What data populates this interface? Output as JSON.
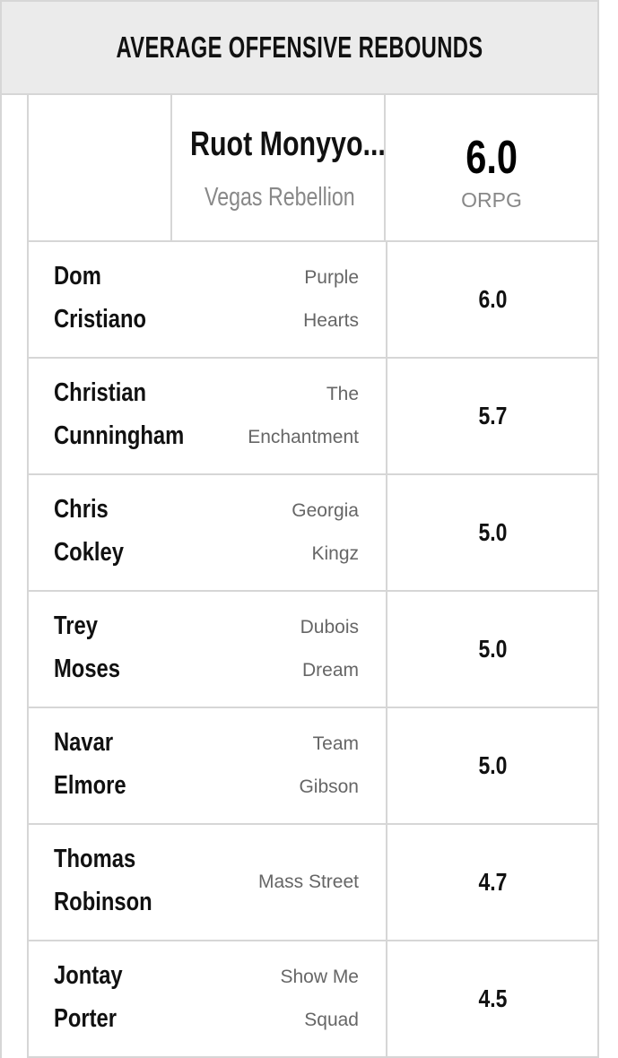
{
  "header": {
    "title": "AVERAGE OFFENSIVE REBOUNDS"
  },
  "leader": {
    "name": "Ruot Monyyo...",
    "team": "Vegas Rebellion",
    "value": "6.0",
    "unit": "ORPG"
  },
  "rows": [
    {
      "name": [
        "Dom",
        "Cristiano"
      ],
      "team": [
        "Purple",
        "Hearts"
      ],
      "value": "6.0"
    },
    {
      "name": [
        "Christian",
        "Cunningham"
      ],
      "team": [
        "The",
        "Enchantment"
      ],
      "value": "5.7"
    },
    {
      "name": [
        "Chris",
        "Cokley"
      ],
      "team": [
        "Georgia",
        "Kingz"
      ],
      "value": "5.0"
    },
    {
      "name": [
        "Trey",
        "Moses"
      ],
      "team": [
        "Dubois",
        "Dream"
      ],
      "value": "5.0"
    },
    {
      "name": [
        "Navar",
        "Elmore"
      ],
      "team": [
        "Team",
        "Gibson"
      ],
      "value": "5.0"
    },
    {
      "name": [
        "Thomas",
        "Robinson"
      ],
      "team": [
        "Mass Street"
      ],
      "value": "4.7"
    },
    {
      "name": [
        "Jontay",
        "Porter"
      ],
      "team": [
        "Show Me",
        "Squad"
      ],
      "value": "4.5"
    }
  ]
}
